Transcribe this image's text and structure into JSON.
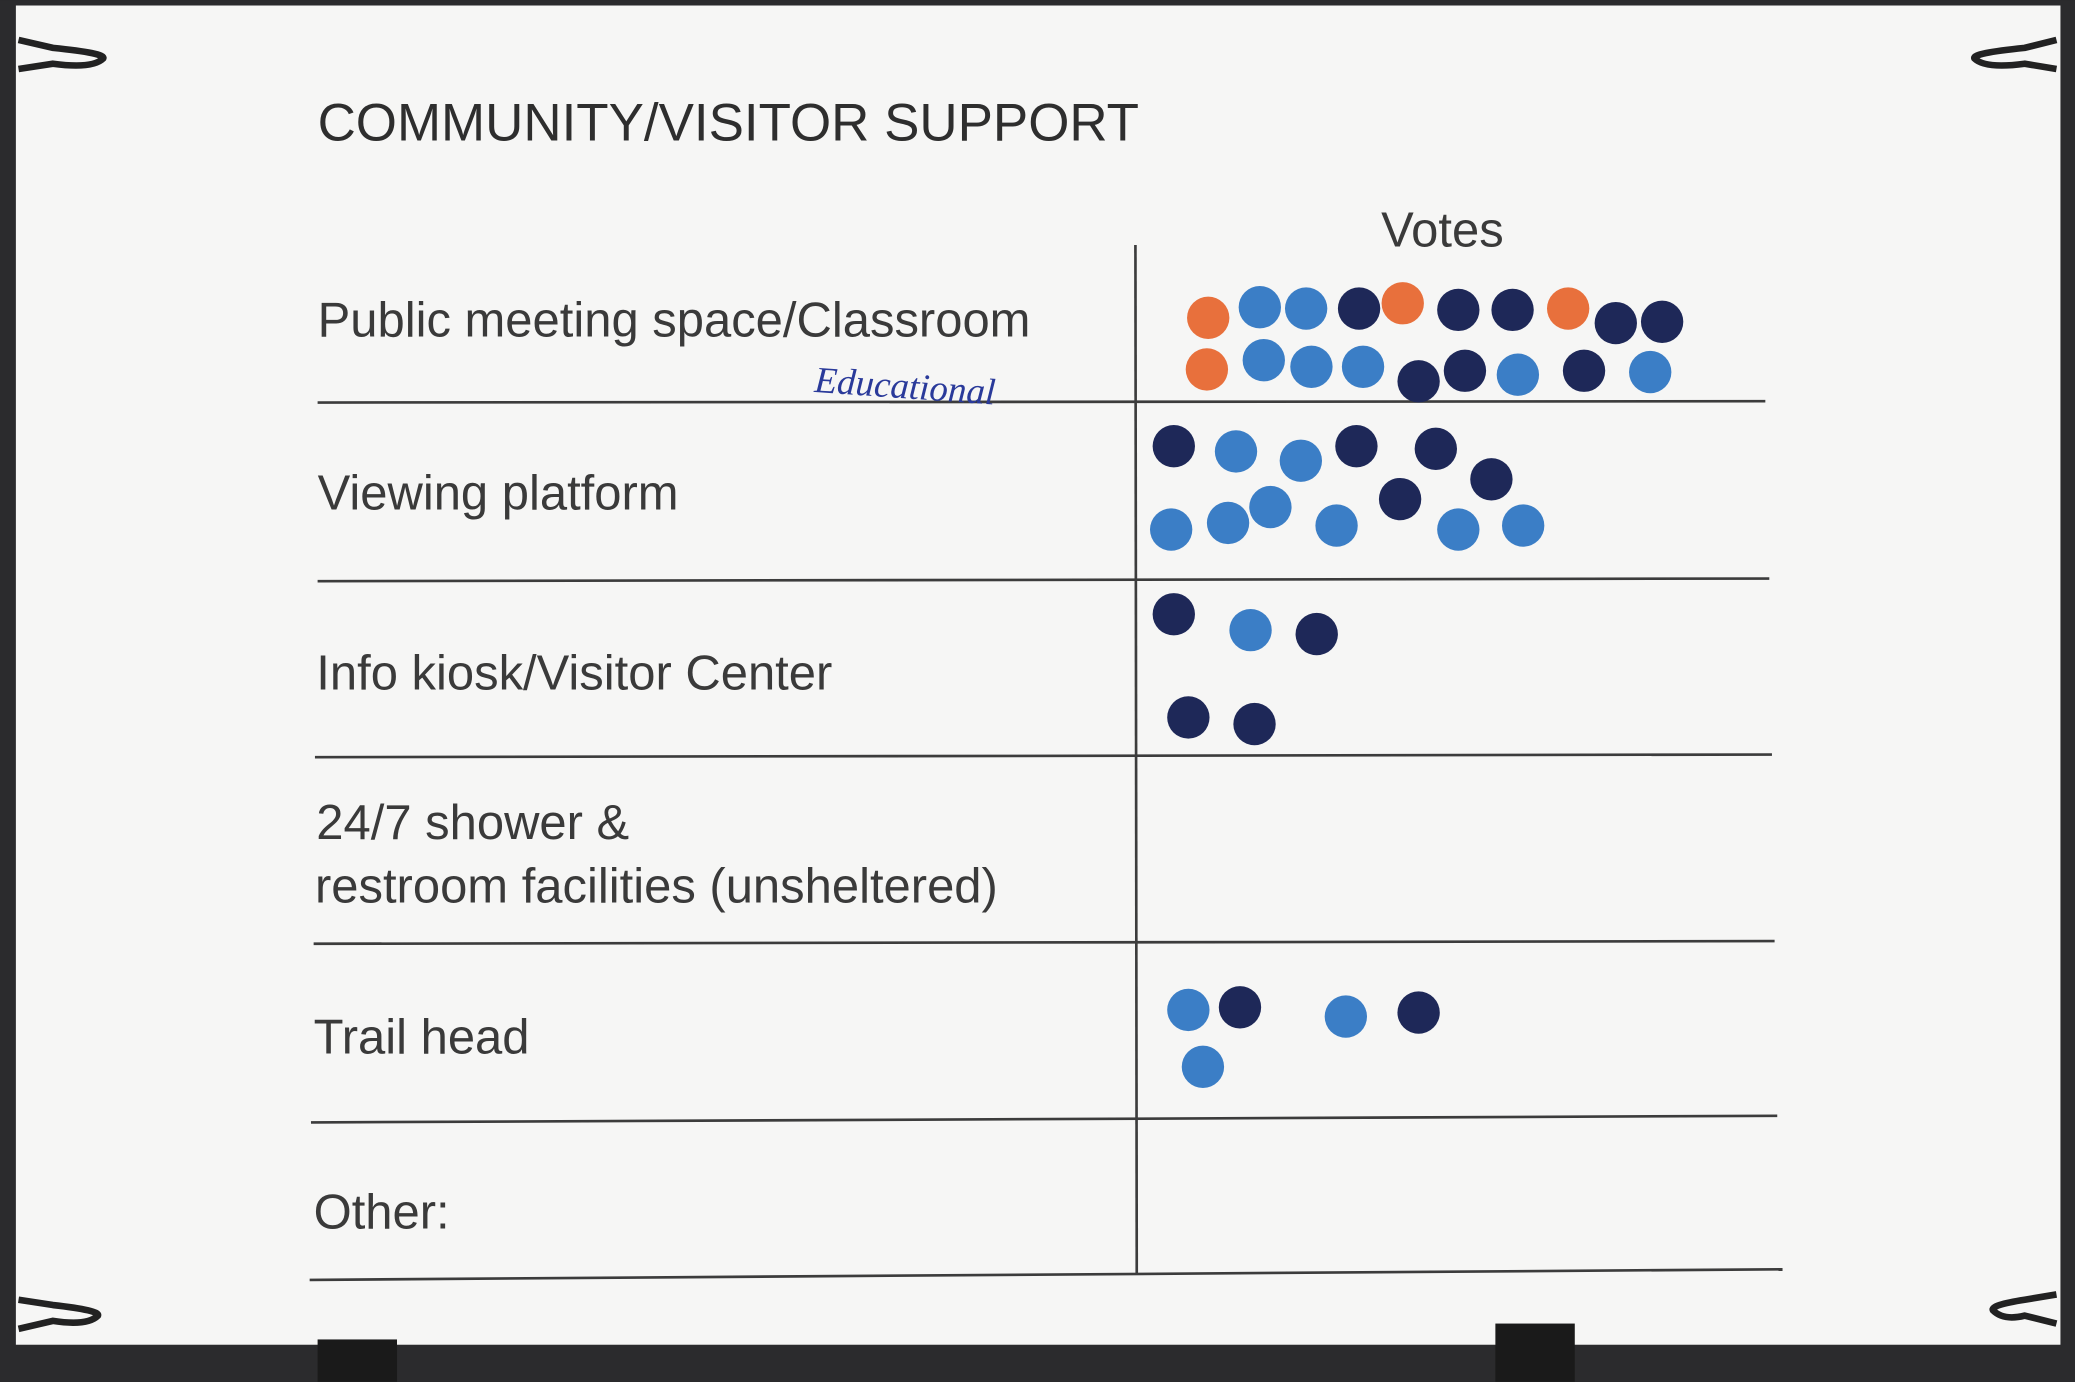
{
  "title": "COMMUNITY/VISITOR SUPPORT",
  "table": {
    "header": "Votes",
    "rows": [
      [
        "Public meeting space/Classroom"
      ],
      [
        "Viewing platform"
      ],
      [
        "Info kiosk/Visitor Center"
      ],
      [
        "24/7 shower &",
        "restroom facilities (unsheltered)"
      ],
      [
        "Trail head"
      ],
      [
        "Other:"
      ]
    ]
  },
  "annotation": "Educational"
}
